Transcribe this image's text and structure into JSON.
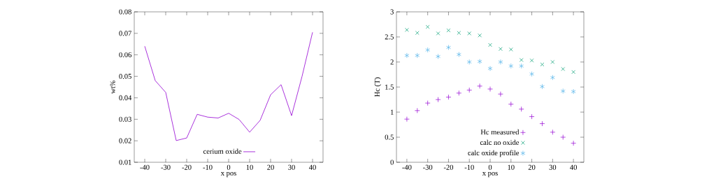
{
  "chart_data": [
    {
      "type": "line",
      "xlabel": "x pos",
      "ylabel": "wt%",
      "x": [
        -40,
        -35,
        -30,
        -25,
        -20,
        -15,
        -10,
        -5,
        0,
        5,
        10,
        15,
        20,
        25,
        30,
        35,
        40
      ],
      "series": [
        {
          "name": "cerium oxide",
          "color": "#9400d3",
          "values": [
            0.064,
            0.048,
            0.0425,
            0.0201,
            0.0213,
            0.0323,
            0.031,
            0.0306,
            0.0328,
            0.0299,
            0.024,
            0.0295,
            0.0414,
            0.0461,
            0.0317,
            0.05,
            0.0705
          ]
        }
      ],
      "xlim": [
        -45,
        45
      ],
      "ylim": [
        0.01,
        0.08
      ],
      "xticks": [
        -40,
        -30,
        -20,
        -10,
        0,
        10,
        20,
        30,
        40
      ],
      "yticks": [
        0.01,
        0.02,
        0.03,
        0.04,
        0.05,
        0.06,
        0.07,
        0.08
      ],
      "legend": "bottom",
      "marker": "none",
      "line_style": "solid",
      "grid": false
    },
    {
      "type": "scatter",
      "xlabel": "x pos",
      "ylabel": "Hc (T)",
      "x": [
        -40,
        -35,
        -30,
        -25,
        -20,
        -15,
        -10,
        -5,
        0,
        5,
        10,
        15,
        20,
        25,
        30,
        35,
        40
      ],
      "series": [
        {
          "name": "Hc measured",
          "color": "#9400d3",
          "marker": "plus",
          "values": [
            0.86,
            1.03,
            1.18,
            1.25,
            1.3,
            1.38,
            1.44,
            1.52,
            1.46,
            1.36,
            1.16,
            1.06,
            0.91,
            0.77,
            0.6,
            0.5,
            0.38
          ]
        },
        {
          "name": "calc no oxide",
          "color": "#009e73",
          "marker": "cross",
          "values": [
            2.64,
            2.58,
            2.7,
            2.57,
            2.63,
            2.58,
            2.57,
            2.53,
            2.34,
            2.26,
            2.25,
            2.04,
            2.03,
            1.95,
            2.0,
            1.86,
            1.8
          ]
        },
        {
          "name": "calc oxide profile",
          "color": "#56b4e9",
          "values": [
            2.13,
            2.13,
            2.24,
            2.11,
            2.29,
            2.15,
            2.0,
            2.01,
            1.87,
            2.0,
            1.92,
            1.92,
            1.76,
            1.51,
            1.69,
            1.42,
            1.41
          ]
        }
      ],
      "xlim": [
        -45,
        45
      ],
      "ylim": [
        0,
        3
      ],
      "xticks": [
        -40,
        -30,
        -20,
        -10,
        0,
        10,
        20,
        30,
        40
      ],
      "yticks": [
        0,
        0.5,
        1,
        1.5,
        2,
        2.5,
        3
      ],
      "legend": "bottom right",
      "grid": false
    }
  ]
}
